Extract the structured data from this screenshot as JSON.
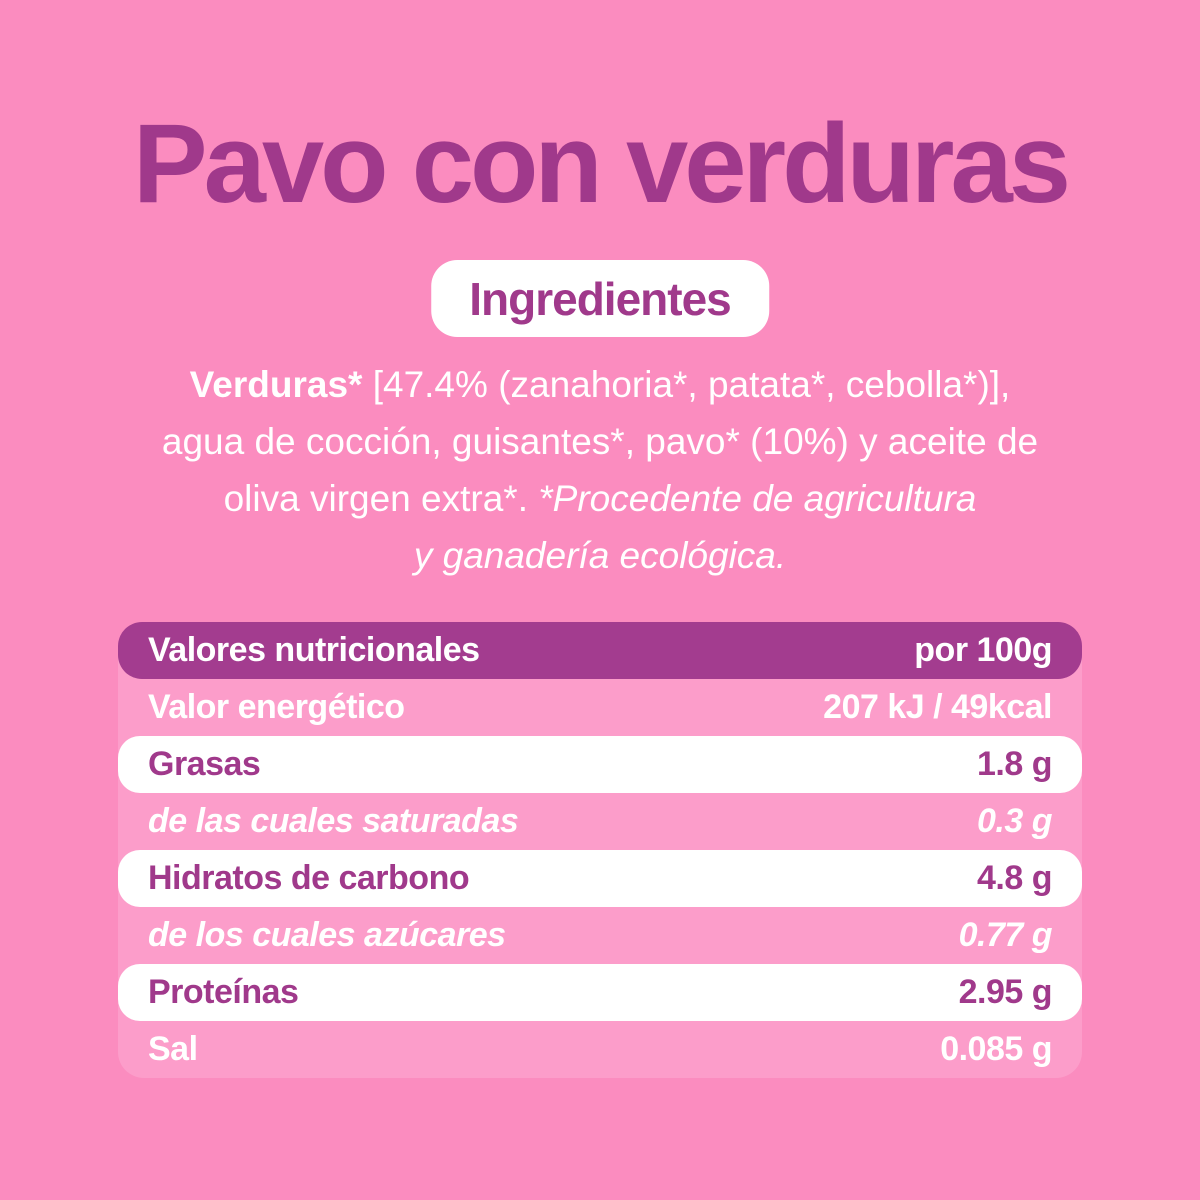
{
  "title": "Pavo con verduras",
  "badge": "Ingredientes",
  "ingredients": {
    "lines": [
      {
        "segments": [
          {
            "text": "Verduras*",
            "style": "bold"
          },
          {
            "text": " [47.4% (zanahoria*, patata*, cebolla*)],",
            "style": "regular"
          }
        ]
      },
      {
        "segments": [
          {
            "text": "agua de cocción, guisantes*, pavo* (10%) y aceite de",
            "style": "regular"
          }
        ]
      },
      {
        "segments": [
          {
            "text": "oliva virgen extra*. ",
            "style": "regular"
          },
          {
            "text": "*Procedente de agricultura",
            "style": "italic"
          }
        ]
      },
      {
        "segments": [
          {
            "text": "y ganadería ecológica.",
            "style": "italic"
          }
        ]
      }
    ]
  },
  "table": {
    "header": {
      "label": "Valores nutricionales",
      "value": "por 100g"
    },
    "rows": [
      {
        "key": "energia",
        "label": "Valor energético",
        "value": "207 kJ / 49kcal",
        "style": "pink"
      },
      {
        "key": "grasas",
        "label": "Grasas",
        "value": "1.8 g",
        "style": "white"
      },
      {
        "key": "saturadas",
        "label": "de las cuales saturadas",
        "value": "0.3 g",
        "style": "pink-italic"
      },
      {
        "key": "hidratos",
        "label": "Hidratos de carbono",
        "value": "4.8 g",
        "style": "white"
      },
      {
        "key": "azucares",
        "label": "de los cuales azúcares",
        "value": "0.77 g",
        "style": "pink-italic"
      },
      {
        "key": "proteinas",
        "label": "Proteínas",
        "value": "2.95 g",
        "style": "white"
      },
      {
        "key": "sal",
        "label": "Sal",
        "value": "0.085 g",
        "style": "pink"
      }
    ]
  },
  "colors": {
    "background": "#FB8CBF",
    "table_background": "#FC9DCA",
    "header_purple": "#A33C8F",
    "text_purple": "#A0398B",
    "white": "#FFFFFF"
  }
}
